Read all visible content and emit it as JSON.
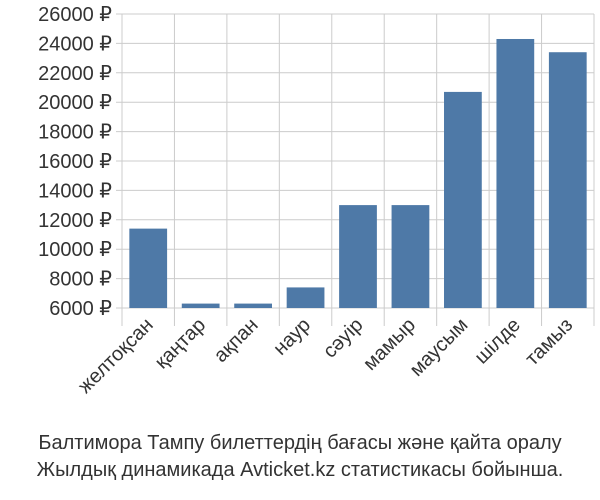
{
  "chart_data": {
    "type": "bar",
    "categories": [
      "желтоқсан",
      "қаңтар",
      "ақпан",
      "наур",
      "сәуір",
      "мамыр",
      "маусым",
      "шілде",
      "тамыз"
    ],
    "values": [
      11400,
      6300,
      6300,
      7400,
      13000,
      13000,
      20700,
      24300,
      23400
    ],
    "ylim": [
      6000,
      26000
    ],
    "yticks": [
      6000,
      8000,
      10000,
      12000,
      14000,
      16000,
      18000,
      20000,
      22000,
      24000,
      26000
    ],
    "tick_suffix": " ₽",
    "grid": true,
    "bar_color": "#4e79a7",
    "grid_color": "#cccccc"
  },
  "caption": {
    "line1": "Балтимора Тампу билеттердің бағасы және қайта оралу",
    "line2": "Жылдық динамикада Avticket.kz статистикасы бойынша."
  }
}
